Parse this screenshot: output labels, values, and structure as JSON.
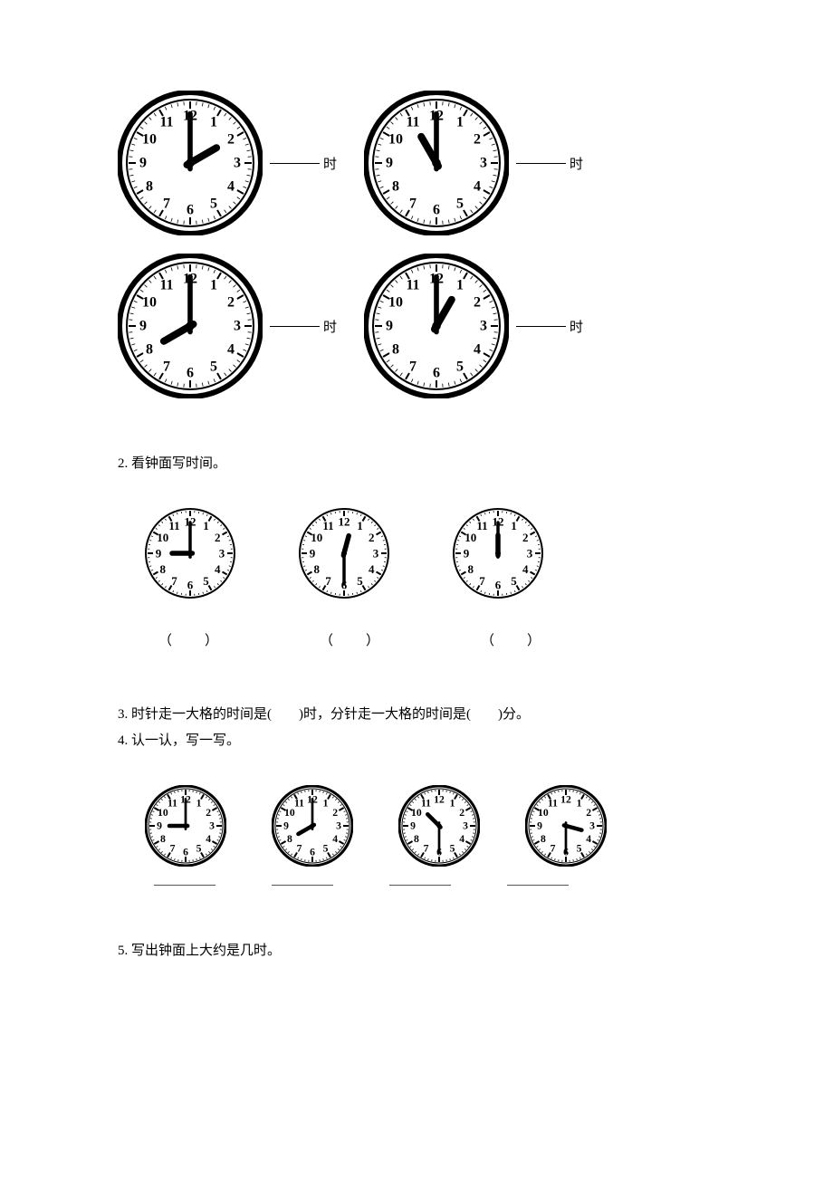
{
  "colors": {
    "stroke": "#000000",
    "bg": "#ffffff",
    "text": "#000000"
  },
  "labels": {
    "hour_suffix": "时",
    "minute_suffix": "分"
  },
  "section1": {
    "clocks": [
      {
        "hour": 2,
        "minute": 0,
        "size": 160,
        "style": "double-rim"
      },
      {
        "hour": 11,
        "minute": 0,
        "size": 160,
        "style": "double-rim"
      },
      {
        "hour": 8,
        "minute": 0,
        "size": 160,
        "style": "double-rim"
      },
      {
        "hour": 1,
        "minute": 0,
        "size": 160,
        "style": "double-rim"
      }
    ]
  },
  "section2": {
    "title": "2. 看钟面写时间。",
    "clocks": [
      {
        "hour": 9,
        "minute": 0,
        "size": 100,
        "style": "thin"
      },
      {
        "hour": 12,
        "minute": 30,
        "size": 100,
        "style": "thin"
      },
      {
        "hour": 12,
        "minute": 0,
        "size": 100,
        "style": "thin"
      }
    ],
    "answer_placeholder": "（　　）"
  },
  "section3": {
    "text_a": "3. 时针走一大格的时间是(　　)时，分针走一大格的时间是(　　)分。"
  },
  "section4": {
    "title": "4. 认一认，写一写。",
    "clocks": [
      {
        "hour": 9,
        "minute": 0,
        "size": 90,
        "style": "medium"
      },
      {
        "hour": 8,
        "minute": 0,
        "size": 90,
        "style": "medium"
      },
      {
        "hour": 10,
        "minute": 30,
        "size": 90,
        "style": "medium"
      },
      {
        "hour": 3,
        "minute": 30,
        "size": 90,
        "style": "medium"
      }
    ]
  },
  "section5": {
    "title": "5. 写出钟面上大约是几时。"
  },
  "clock_numerals": [
    "12",
    "1",
    "2",
    "3",
    "4",
    "5",
    "6",
    "7",
    "8",
    "9",
    "10",
    "11"
  ]
}
